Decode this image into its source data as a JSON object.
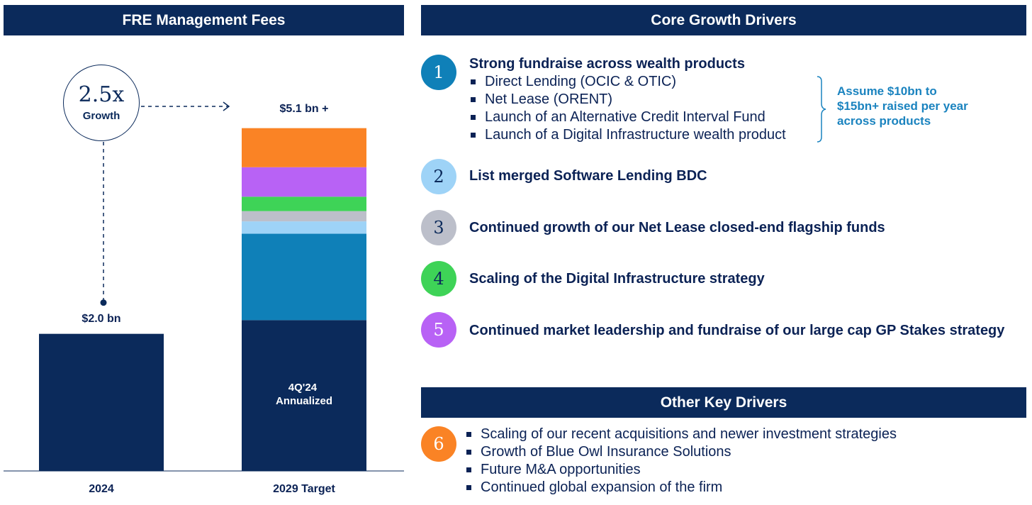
{
  "headers": {
    "left": "FRE Management Fees",
    "core": "Core Growth Drivers",
    "other": "Other Key Drivers"
  },
  "growth": {
    "multiple": "2.5x",
    "label": "Growth"
  },
  "chart_data": {
    "type": "bar",
    "stacked": true,
    "categories": [
      "2024",
      "2029 Target"
    ],
    "ylim": [
      0,
      5.1
    ],
    "total_labels": [
      "$2.0 bn",
      "$5.1 bn +"
    ],
    "base_label": "4Q'24 Annualized",
    "bars": [
      {
        "category": "2024",
        "total": 2.0,
        "segments": [
          {
            "value": 2.0,
            "color": "#0b2a5b"
          }
        ]
      },
      {
        "category": "2029 Target",
        "total": 5.1,
        "segments": [
          {
            "value": 2.2,
            "color": "#0b2a5b"
          },
          {
            "value": 1.26,
            "color": "#0f80b8"
          },
          {
            "value": 0.18,
            "color": "#9ed3f7"
          },
          {
            "value": 0.15,
            "color": "#bcbfca"
          },
          {
            "value": 0.21,
            "color": "#3ed357"
          },
          {
            "value": 0.43,
            "color": "#b862f5"
          },
          {
            "value": 0.57,
            "color": "#fa8325"
          }
        ]
      }
    ]
  },
  "core_drivers": [
    {
      "num": "1",
      "color": "#0f80b8",
      "text_color": "#ffffff",
      "title": "Strong fundraise across wealth products",
      "items": [
        "Direct Lending (OCIC & OTIC)",
        "Net Lease (ORENT)",
        "Launch of an Alternative Credit Interval Fund",
        "Launch of a Digital Infrastructure wealth product"
      ]
    },
    {
      "num": "2",
      "color": "#9ed3f7",
      "text_color": "#0b2a5b",
      "title": "List merged Software Lending BDC"
    },
    {
      "num": "3",
      "color": "#bcbfca",
      "text_color": "#0b2a5b",
      "title": "Continued growth of our Net Lease closed-end flagship funds"
    },
    {
      "num": "4",
      "color": "#3ed357",
      "text_color": "#0b2a5b",
      "title": "Scaling of the Digital Infrastructure strategy"
    },
    {
      "num": "5",
      "color": "#b862f5",
      "text_color": "#ffffff",
      "title": "Continued market leadership and fundraise of our large cap GP Stakes strategy"
    }
  ],
  "assumption_note": "Assume $10bn to $15bn+ raised per year across products",
  "other_driver": {
    "num": "6",
    "color": "#fa8325",
    "text_color": "#ffffff",
    "items": [
      "Scaling of our recent acquisitions and newer investment strategies",
      "Growth of Blue Owl Insurance Solutions",
      "Future M&A opportunities",
      "Continued global expansion of the firm"
    ]
  }
}
